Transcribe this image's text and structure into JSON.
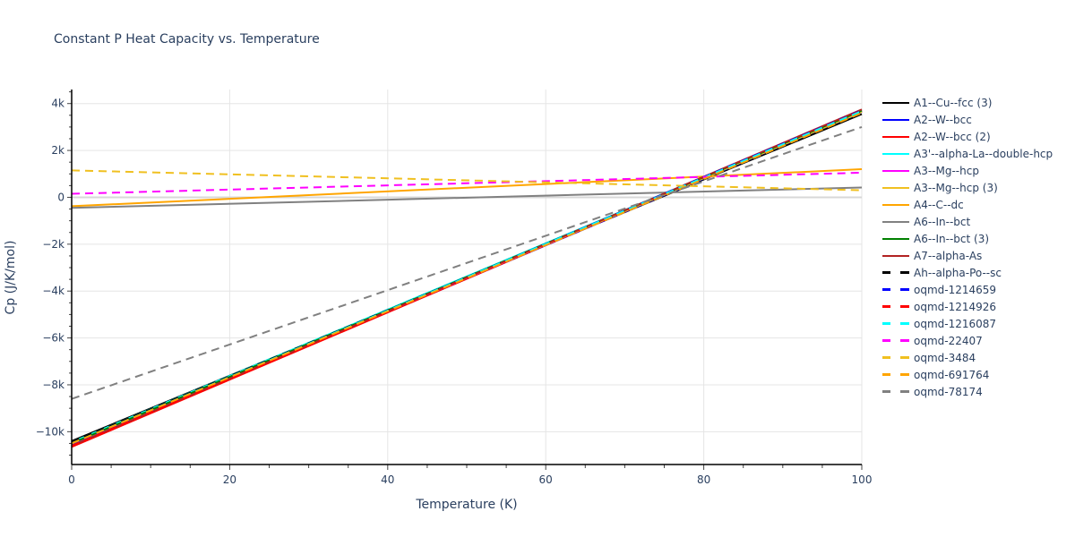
{
  "title": "Constant P Heat Capacity vs. Temperature",
  "chart_data": {
    "type": "line",
    "title": "Constant P Heat Capacity vs. Temperature",
    "xlabel": "Temperature (K)",
    "ylabel": "Cp (J/K/mol)",
    "xlim": [
      0,
      100
    ],
    "ylim": [
      -11400,
      4600
    ],
    "x_ticks": [
      "0",
      "20",
      "40",
      "60",
      "80",
      "100"
    ],
    "y_ticks": [
      "4k",
      "2k",
      "0",
      "−2k",
      "−4k",
      "−6k",
      "−8k",
      "−10k"
    ],
    "grid": true,
    "legend_position": "right",
    "x": [
      0,
      100
    ],
    "series": [
      {
        "name": "A1--Cu--fcc (3)",
        "color": "#000000",
        "dash": "solid",
        "values": [
          -10400,
          3550
        ]
      },
      {
        "name": "A2--W--bcc",
        "color": "#0000ff",
        "dash": "solid",
        "values": [
          -10600,
          3650
        ]
      },
      {
        "name": "A2--W--bcc (2)",
        "color": "#ff0000",
        "dash": "solid",
        "values": [
          -10650,
          3700
        ]
      },
      {
        "name": "A3'--alpha-La--double-hcp",
        "color": "#00ffff",
        "dash": "solid",
        "values": [
          -10450,
          3700
        ]
      },
      {
        "name": "A3--Mg--hcp",
        "color": "#ff00ff",
        "dash": "solid",
        "values": [
          -10550,
          3680
        ]
      },
      {
        "name": "A3--Mg--hcp (3)",
        "color": "#f0c020",
        "dash": "solid",
        "values": [
          -10500,
          3650
        ]
      },
      {
        "name": "A4--C--dc",
        "color": "#ffa500",
        "dash": "solid",
        "values": [
          -380,
          1200
        ]
      },
      {
        "name": "A6--In--bct",
        "color": "#808080",
        "dash": "solid",
        "values": [
          -450,
          420
        ]
      },
      {
        "name": "A6--In--bct (3)",
        "color": "#008000",
        "dash": "solid",
        "values": [
          -10500,
          3700
        ]
      },
      {
        "name": "A7--alpha-As",
        "color": "#b22222",
        "dash": "solid",
        "values": [
          -10600,
          3750
        ]
      },
      {
        "name": "Ah--alpha-Po--sc",
        "color": "#000000",
        "dash": "dash",
        "values": [
          -10450,
          3650
        ]
      },
      {
        "name": "oqmd-1214659",
        "color": "#0000ff",
        "dash": "dash",
        "values": [
          -10550,
          3720
        ]
      },
      {
        "name": "oqmd-1214926",
        "color": "#ff0000",
        "dash": "dash",
        "values": [
          -10600,
          3700
        ]
      },
      {
        "name": "oqmd-1216087",
        "color": "#00ffff",
        "dash": "dash",
        "values": [
          -10500,
          3680
        ]
      },
      {
        "name": "oqmd-22407",
        "color": "#ff00ff",
        "dash": "dash",
        "values": [
          150,
          1050
        ]
      },
      {
        "name": "oqmd-3484",
        "color": "#f0c020",
        "dash": "dash",
        "values": [
          1150,
          300
        ]
      },
      {
        "name": "oqmd-691764",
        "color": "#ffa500",
        "dash": "dash",
        "values": [
          -10500,
          3600
        ]
      },
      {
        "name": "oqmd-78174",
        "color": "#808080",
        "dash": "dash",
        "values": [
          -8600,
          3000
        ]
      }
    ]
  }
}
